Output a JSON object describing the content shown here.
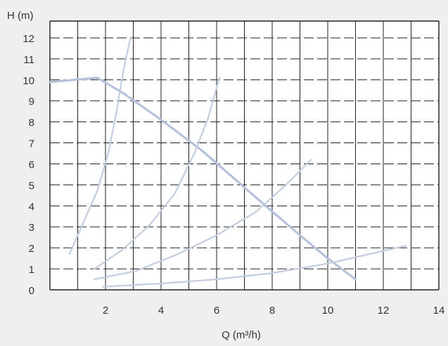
{
  "chart_data": {
    "type": "line",
    "xlabel": "Q (m³/h)",
    "ylabel": "H (m)",
    "xlim": [
      0,
      14
    ],
    "ylim": [
      0,
      12.8
    ],
    "x_ticks": [
      2,
      4,
      6,
      8,
      10,
      12,
      14
    ],
    "y_ticks": [
      0,
      1,
      2,
      3,
      4,
      5,
      6,
      7,
      8,
      9,
      10,
      11,
      12
    ],
    "grid": "on",
    "legend": "none",
    "colors": {
      "background": "#efefef",
      "plot_area": "#ffffff",
      "grid": "#222222",
      "curves": "#c3cde0",
      "pump_curve": "#b6c2da",
      "text": "#333333"
    },
    "series": [
      {
        "role": "pump-curve",
        "points": [
          [
            0,
            9.9
          ],
          [
            1.7,
            10.1
          ],
          [
            2.6,
            9.4
          ],
          [
            4,
            8.1
          ],
          [
            5.5,
            6.6
          ],
          [
            7.5,
            4.3
          ],
          [
            9,
            2.6
          ],
          [
            10,
            1.5
          ],
          [
            11,
            0.5
          ]
        ]
      },
      {
        "role": "system-curve",
        "points": [
          [
            0.7,
            1.7
          ],
          [
            1.2,
            3.2
          ],
          [
            1.7,
            4.7
          ],
          [
            2.1,
            6.5
          ],
          [
            2.4,
            8.5
          ],
          [
            2.65,
            10.5
          ],
          [
            2.9,
            12.0
          ]
        ]
      },
      {
        "role": "system-curve",
        "points": [
          [
            1.6,
            1.0
          ],
          [
            2.6,
            1.9
          ],
          [
            3.6,
            3.1
          ],
          [
            4.5,
            4.6
          ],
          [
            5.2,
            6.5
          ],
          [
            5.7,
            8.2
          ],
          [
            6.1,
            10.1
          ]
        ]
      },
      {
        "role": "system-curve",
        "points": [
          [
            1.6,
            0.5
          ],
          [
            3.1,
            0.9
          ],
          [
            4.6,
            1.7
          ],
          [
            6.0,
            2.6
          ],
          [
            7.4,
            3.7
          ],
          [
            8.5,
            5.0
          ],
          [
            9.4,
            6.2
          ]
        ]
      },
      {
        "role": "system-curve",
        "points": [
          [
            1.9,
            0.15
          ],
          [
            4,
            0.3
          ],
          [
            6,
            0.5
          ],
          [
            8,
            0.8
          ],
          [
            10,
            1.25
          ],
          [
            11.5,
            1.7
          ],
          [
            12.8,
            2.1
          ]
        ]
      }
    ]
  }
}
